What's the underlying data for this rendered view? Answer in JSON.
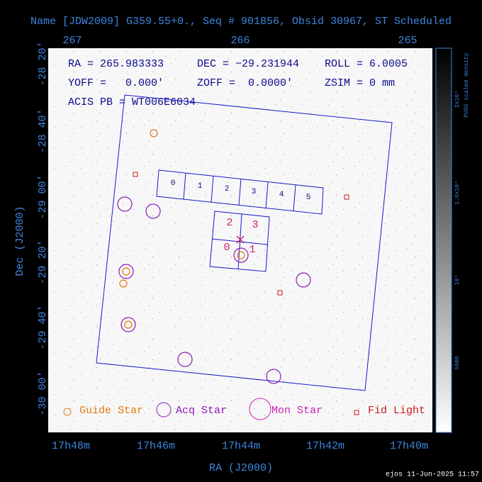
{
  "header": {
    "title": "Name [JDW2009] G359.55+0., Seq # 901856, Obsid 30967, ST Scheduled"
  },
  "axes": {
    "top_ticks": [
      "267",
      "266",
      "265"
    ],
    "left_ticks": [
      "-28 20'",
      "-28 40'",
      "-29 00'",
      "-29 20'",
      "-29 40'",
      "-30 00'"
    ],
    "bottom_ticks": [
      "17h48m",
      "17h46m",
      "17h44m",
      "17h42m",
      "17h40m"
    ],
    "x_label": "RA (J2000)",
    "y_label": "Dec (J2000)"
  },
  "info": {
    "ra": "RA = 265.983333",
    "dec": "DEC = −29.231944",
    "roll": "ROLL = 6.0005",
    "yoff": "YOFF =   0.000'",
    "zoff": "ZOFF =  0.0000'",
    "zsim": "ZSIM = 0 mm",
    "acis": "ACIS PB = WT006E6034"
  },
  "chips": {
    "acis_s": [
      "0",
      "1",
      "2",
      "3",
      "4",
      "5"
    ],
    "acis_i": [
      "2",
      "3",
      "0",
      "1"
    ]
  },
  "legend": [
    "Guide Star",
    "Acq Star",
    "Mon Star",
    "Fid Light"
  ],
  "colorbar": {
    "label": "PUSS scaled density",
    "ticks": [
      "2x10⁴",
      "1.6x10⁴",
      "10⁴",
      "5000"
    ]
  },
  "footer": "ejos 11-Jun-2025 11:57"
}
